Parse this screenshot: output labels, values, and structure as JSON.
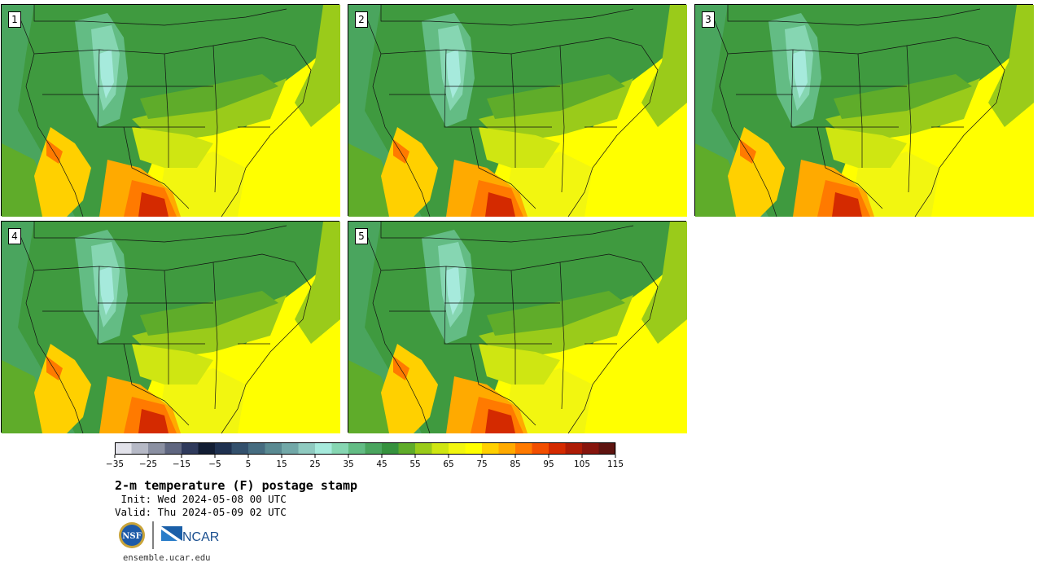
{
  "panels": [
    {
      "label": "1"
    },
    {
      "label": "2"
    },
    {
      "label": "3"
    },
    {
      "label": "4"
    },
    {
      "label": "5"
    }
  ],
  "title": "2-m temperature (F) postage stamp",
  "init": " Init: Wed 2024-05-08 00 UTC",
  "valid": "Valid: Thu 2024-05-09 02 UTC",
  "footer": "ensemble.ucar.edu",
  "logos": {
    "nsf": "NSF",
    "ncar": "NCAR"
  },
  "colorbar": {
    "ticks": [
      "−35",
      "−25",
      "−15",
      "−5",
      "5",
      "15",
      "25",
      "35",
      "45",
      "55",
      "65",
      "75",
      "85",
      "95",
      "105",
      "115"
    ],
    "colors": [
      "#e2e2ea",
      "#b6b9c6",
      "#8b90a2",
      "#5f6680",
      "#2f3a5c",
      "#121d33",
      "#1f3150",
      "#33506c",
      "#466c80",
      "#5a8a92",
      "#72a8a8",
      "#8fcac0",
      "#a6eadc",
      "#86d6b2",
      "#63bc84",
      "#4aa55e",
      "#36923e",
      "#5fac2a",
      "#9acb1a",
      "#cfe612",
      "#f2f610",
      "#ffff00",
      "#ffd000",
      "#ffaa00",
      "#ff7a00",
      "#f24e00",
      "#d42a00",
      "#ad1c06",
      "#86150d",
      "#5e1410"
    ]
  }
}
